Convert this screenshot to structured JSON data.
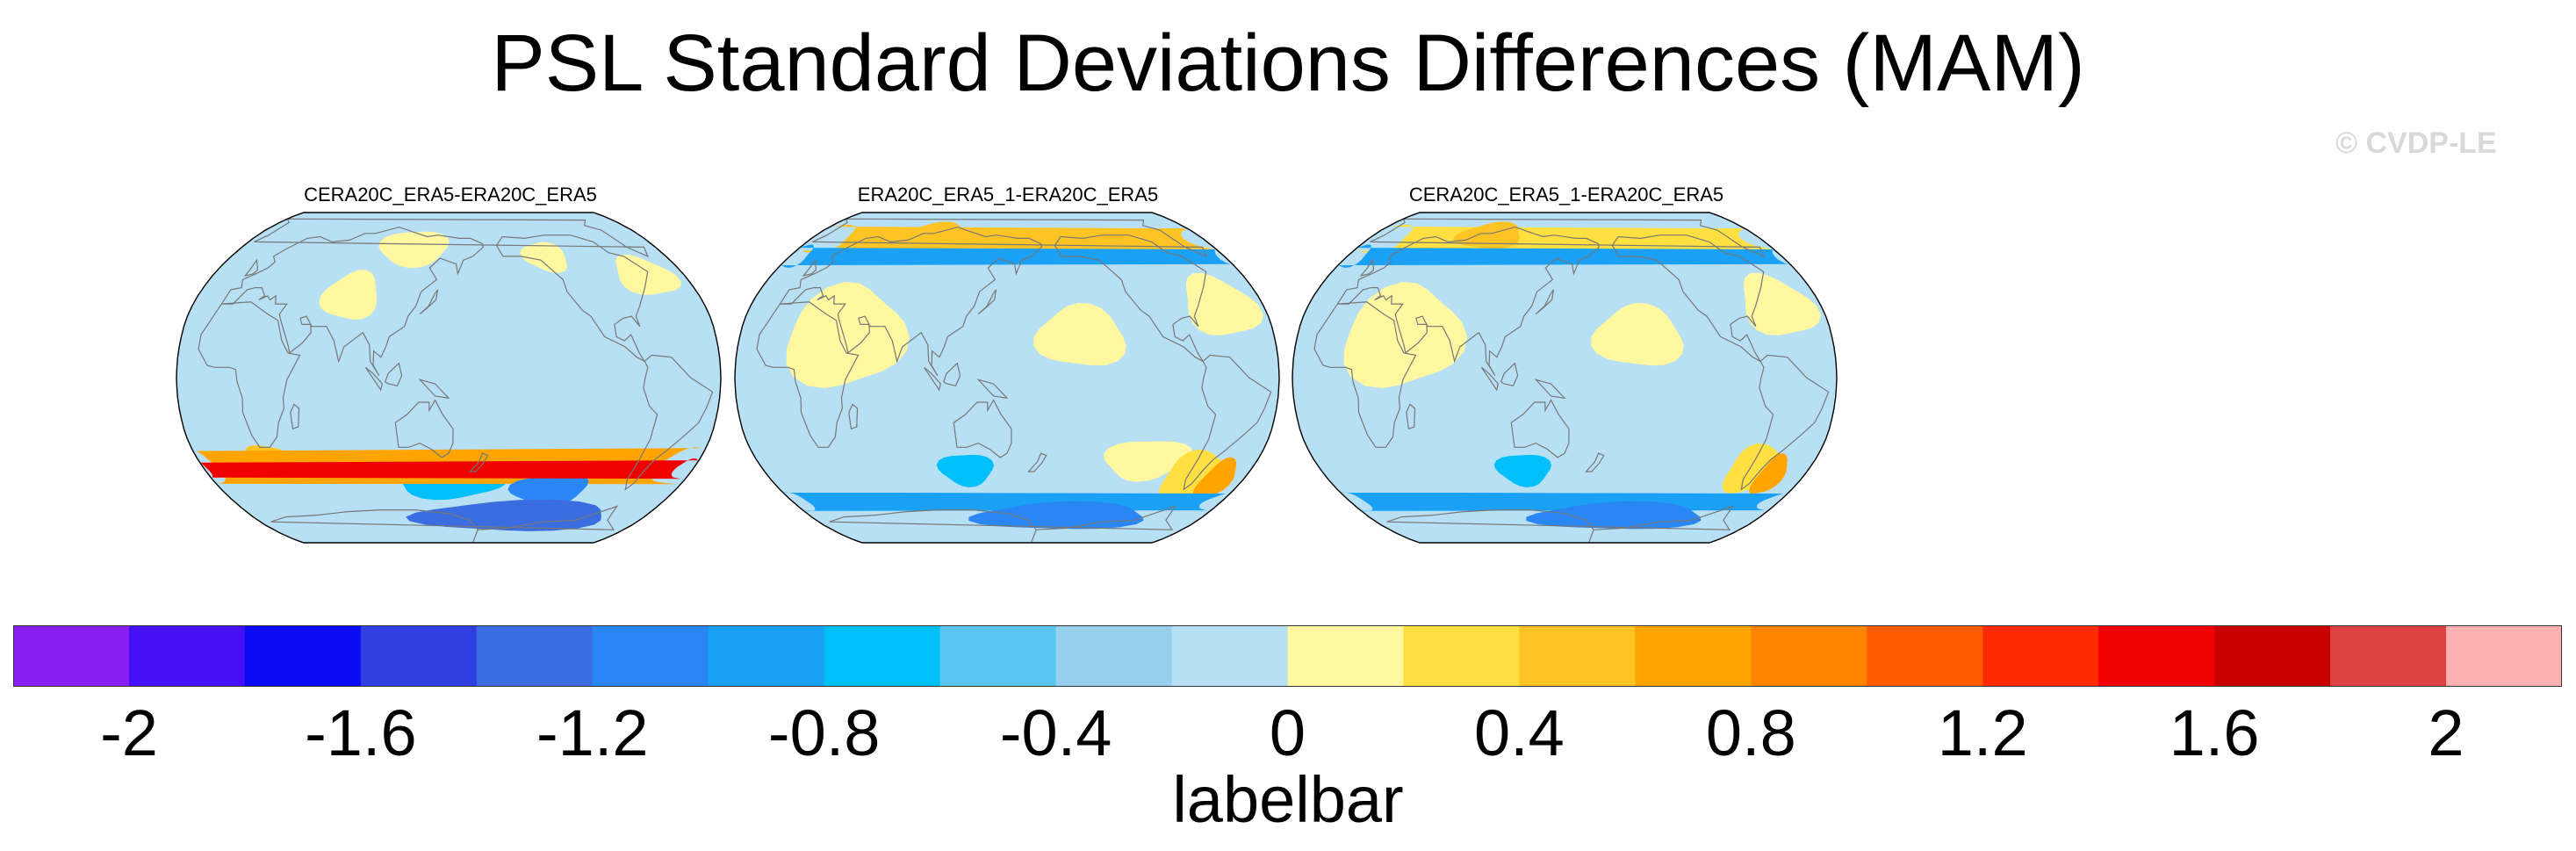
{
  "title": "PSL Standard Deviations Differences (MAM)",
  "watermark": "© CVDP-LE",
  "chart_data": {
    "type": "heatmap",
    "projection": "Robinson (global, Pacific-centered)",
    "panels": [
      {
        "title": "CERA20C_ERA5-ERA20C_ERA5",
        "blobs": [
          {
            "lon": 325,
            "lat": -45,
            "value": 1.6,
            "rx": 8,
            "ry": 5
          },
          {
            "lon": 322,
            "lat": -44,
            "value": 0.8,
            "rx": 20,
            "ry": 9
          },
          {
            "lon": 290,
            "lat": -45,
            "value": 0.3,
            "rx": 14,
            "ry": 6
          },
          {
            "lon": 20,
            "lat": -38,
            "value": 0.5,
            "rx": 14,
            "ry": 5
          },
          {
            "lon": 230,
            "lat": -55,
            "value": -1.0,
            "rx": 30,
            "ry": 8
          },
          {
            "lon": 150,
            "lat": -52,
            "value": -0.6,
            "rx": 40,
            "ry": 8
          },
          {
            "lon": 210,
            "lat": -70,
            "value": -1.2,
            "rx": 90,
            "ry": 9
          },
          {
            "lon": 120,
            "lat": 65,
            "value": 0.1,
            "rx": 30,
            "ry": 10
          },
          {
            "lon": 80,
            "lat": 40,
            "value": 0.1,
            "rx": 20,
            "ry": 12
          },
          {
            "lon": 300,
            "lat": 50,
            "value": 0.1,
            "rx": 22,
            "ry": 10
          },
          {
            "lon": 230,
            "lat": 60,
            "value": 0.1,
            "rx": 18,
            "ry": 8
          }
        ]
      },
      {
        "title": "ERA20C_ERA5_1-ERA20C_ERA5",
        "blobs": [
          {
            "lon": 80,
            "lat": 72,
            "value": 0.5,
            "rx": 30,
            "ry": 8
          },
          {
            "lon": 340,
            "lat": 70,
            "value": 0.6,
            "rx": 25,
            "ry": 8
          },
          {
            "lon": 335,
            "lat": 60,
            "value": -0.9,
            "rx": 10,
            "ry": 6
          },
          {
            "lon": 160,
            "lat": 65,
            "value": -0.4,
            "rx": 15,
            "ry": 6
          },
          {
            "lon": 40,
            "lat": 20,
            "value": 0.2,
            "rx": 40,
            "ry": 25
          },
          {
            "lon": 200,
            "lat": 20,
            "value": 0.2,
            "rx": 30,
            "ry": 15
          },
          {
            "lon": 300,
            "lat": 35,
            "value": 0.2,
            "rx": 25,
            "ry": 15
          },
          {
            "lon": 310,
            "lat": -50,
            "value": 0.8,
            "rx": 12,
            "ry": 10
          },
          {
            "lon": 290,
            "lat": -48,
            "value": 0.4,
            "rx": 22,
            "ry": 12
          },
          {
            "lon": 250,
            "lat": -40,
            "value": 0.2,
            "rx": 30,
            "ry": 10
          },
          {
            "lon": 330,
            "lat": -62,
            "value": -0.8,
            "rx": 14,
            "ry": 5
          },
          {
            "lon": 120,
            "lat": -45,
            "value": -0.6,
            "rx": 20,
            "ry": 8
          },
          {
            "lon": 200,
            "lat": -70,
            "value": -1.0,
            "rx": 80,
            "ry": 8
          }
        ]
      },
      {
        "title": "CERA20C_ERA5_1-ERA20C_ERA5",
        "blobs": [
          {
            "lon": 80,
            "lat": 72,
            "value": 0.5,
            "rx": 30,
            "ry": 8
          },
          {
            "lon": 340,
            "lat": 70,
            "value": 0.4,
            "rx": 25,
            "ry": 8
          },
          {
            "lon": 335,
            "lat": 60,
            "value": -0.8,
            "rx": 10,
            "ry": 6
          },
          {
            "lon": 40,
            "lat": 20,
            "value": 0.2,
            "rx": 40,
            "ry": 25
          },
          {
            "lon": 200,
            "lat": 20,
            "value": 0.2,
            "rx": 30,
            "ry": 15
          },
          {
            "lon": 300,
            "lat": 35,
            "value": 0.2,
            "rx": 25,
            "ry": 15
          },
          {
            "lon": 305,
            "lat": -48,
            "value": 0.8,
            "rx": 10,
            "ry": 10
          },
          {
            "lon": 290,
            "lat": -45,
            "value": 0.4,
            "rx": 20,
            "ry": 12
          },
          {
            "lon": 330,
            "lat": -62,
            "value": -0.8,
            "rx": 14,
            "ry": 5
          },
          {
            "lon": 120,
            "lat": -45,
            "value": -0.6,
            "rx": 20,
            "ry": 8
          },
          {
            "lon": 200,
            "lat": -70,
            "value": -1.0,
            "rx": 80,
            "ry": 8
          }
        ]
      }
    ],
    "colorbar": {
      "levels": [
        -2,
        -1.8,
        -1.6,
        -1.4,
        -1.2,
        -1,
        -0.8,
        -0.6,
        -0.4,
        -0.2,
        0,
        0.2,
        0.4,
        0.6,
        0.8,
        1,
        1.2,
        1.4,
        1.6,
        1.8,
        2
      ],
      "colors": [
        "#8a1ef0",
        "#4610f5",
        "#0a0af5",
        "#3040e0",
        "#3a6ee0",
        "#2a86f5",
        "#1aa0f5",
        "#00bff9",
        "#58c6f0",
        "#96d0ee",
        "#b8e0f5",
        "#fff8a0",
        "#ffe040",
        "#ffc424",
        "#ffa400",
        "#ff8400",
        "#ff5c00",
        "#ff2a00",
        "#f00000",
        "#c80000",
        "#dc4444",
        "#ffb0b0"
      ],
      "tick_labels": [
        "-2",
        "-1.6",
        "-1.2",
        "-0.8",
        "-0.4",
        "0",
        "0.4",
        "0.8",
        "1.2",
        "1.6",
        "2"
      ],
      "label": "labelbar"
    }
  }
}
